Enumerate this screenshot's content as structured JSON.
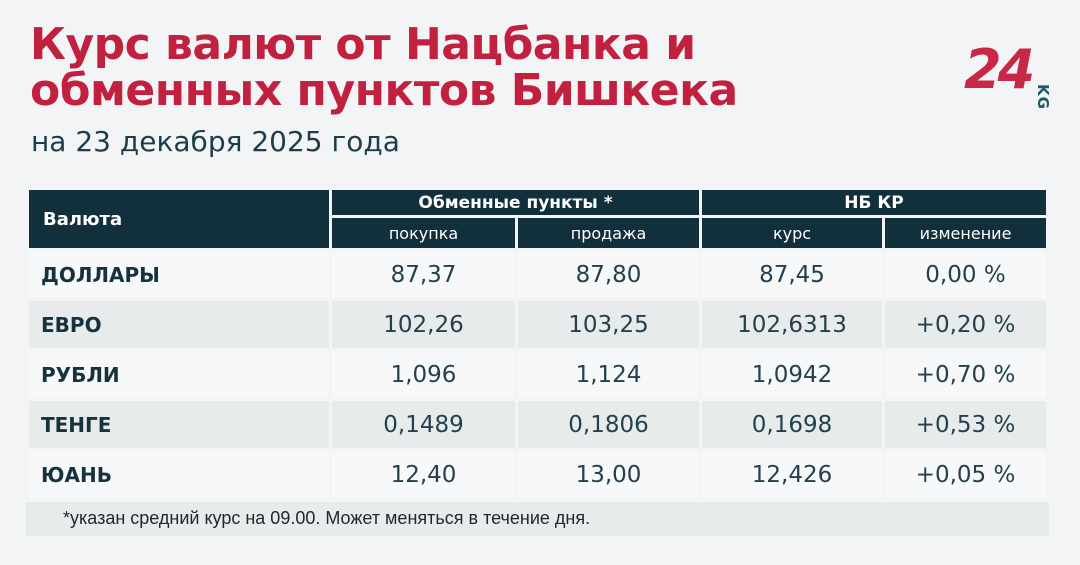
{
  "colors": {
    "accent_red": "#c1203f",
    "header_teal": "#11303c",
    "text_dark": "#1e3d4c",
    "row_light": "#f6f8f9",
    "row_alt": "#e8ebeb",
    "page_bg": "#f2f4f6",
    "logo_red": "#c92746",
    "logo_kg_teal": "#1d5866"
  },
  "header": {
    "title_line1": "Курс валют от Нацбанка и",
    "title_line2": "обменных пунктов Бишкека",
    "date": "на 23 декабря 2025 года"
  },
  "logo": {
    "number": "24",
    "suffix": "KG"
  },
  "table": {
    "currency_header": "Валюта",
    "groups": [
      {
        "label": "Обменные пункты *",
        "subcols": [
          "покупка",
          "продажа"
        ]
      },
      {
        "label": "НБ КР",
        "subcols": [
          "курс",
          "изменение"
        ]
      }
    ],
    "rows": [
      {
        "currency": "ДОЛЛАРЫ",
        "buy": "87,37",
        "sell": "87,80",
        "rate": "87,45",
        "change": "0,00 %"
      },
      {
        "currency": "ЕВРО",
        "buy": "102,26",
        "sell": "103,25",
        "rate": "102,6313",
        "change": "+0,20 %"
      },
      {
        "currency": "РУБЛИ",
        "buy": "1,096",
        "sell": "1,124",
        "rate": "1,0942",
        "change": "+0,70 %"
      },
      {
        "currency": "ТЕНГЕ",
        "buy": "0,1489",
        "sell": "0,1806",
        "rate": "0,1698",
        "change": "+0,53 %"
      },
      {
        "currency": "ЮАНЬ",
        "buy": "12,40",
        "sell": "13,00",
        "rate": "12,426",
        "change": "+0,05 %"
      }
    ],
    "footnote": "*указан средний курс на 09.00. Может меняться в течение дня."
  },
  "chart_data": {
    "type": "table",
    "title": "Курс валют от Нацбанка и обменных пунктов Бишкека",
    "subtitle": "на 23 декабря 2025 года",
    "column_groups": [
      "Обменные пункты *",
      "НБ КР"
    ],
    "columns": [
      "Валюта",
      "покупка",
      "продажа",
      "курс",
      "изменение"
    ],
    "rows": [
      [
        "ДОЛЛАРЫ",
        "87,37",
        "87,80",
        "87,45",
        "0,00 %"
      ],
      [
        "ЕВРО",
        "102,26",
        "103,25",
        "102,6313",
        "+0,20 %"
      ],
      [
        "РУБЛИ",
        "1,096",
        "1,124",
        "1,0942",
        "+0,70 %"
      ],
      [
        "ТЕНГЕ",
        "0,1489",
        "0,1806",
        "0,1698",
        "+0,53 %"
      ],
      [
        "ЮАНЬ",
        "12,40",
        "13,00",
        "12,426",
        "+0,05 %"
      ]
    ],
    "footnote": "*указан средний курс на 09.00. Может меняться в течение дня."
  }
}
